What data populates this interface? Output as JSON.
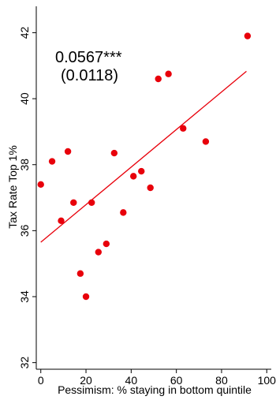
{
  "chart_data": {
    "type": "scatter",
    "xlabel": "Pessimism: % staying in bottom quintile",
    "ylabel": "Tax Rate Top 1%",
    "xlim": [
      -2,
      102
    ],
    "ylim": [
      31.8,
      42.8
    ],
    "x_ticks": [
      0,
      20,
      40,
      60,
      80,
      100
    ],
    "y_ticks": [
      32,
      34,
      36,
      38,
      40,
      42
    ],
    "grid": false,
    "legend": "none",
    "annotation": {
      "coefficient": "0.0567***",
      "std_error": "(0.0118)"
    },
    "points": [
      {
        "x": 0,
        "y": 37.4
      },
      {
        "x": 5,
        "y": 38.1
      },
      {
        "x": 9,
        "y": 36.3
      },
      {
        "x": 12,
        "y": 38.4
      },
      {
        "x": 14.5,
        "y": 36.85
      },
      {
        "x": 17.5,
        "y": 34.7
      },
      {
        "x": 20,
        "y": 34.0
      },
      {
        "x": 22.5,
        "y": 36.85
      },
      {
        "x": 25.5,
        "y": 35.35
      },
      {
        "x": 29,
        "y": 35.6
      },
      {
        "x": 32.5,
        "y": 38.35
      },
      {
        "x": 36.5,
        "y": 36.55
      },
      {
        "x": 41,
        "y": 37.65
      },
      {
        "x": 44.5,
        "y": 37.8
      },
      {
        "x": 48.5,
        "y": 37.3
      },
      {
        "x": 52,
        "y": 40.6
      },
      {
        "x": 56.5,
        "y": 40.75
      },
      {
        "x": 63,
        "y": 39.1
      },
      {
        "x": 73,
        "y": 38.7
      },
      {
        "x": 91.5,
        "y": 41.9
      }
    ],
    "fit_line": {
      "x": [
        0,
        91
      ],
      "y": [
        35.65,
        40.83
      ]
    },
    "colors": {
      "points": "#e8000b",
      "fit_line": "#e8000b",
      "axis": "#000000"
    }
  }
}
